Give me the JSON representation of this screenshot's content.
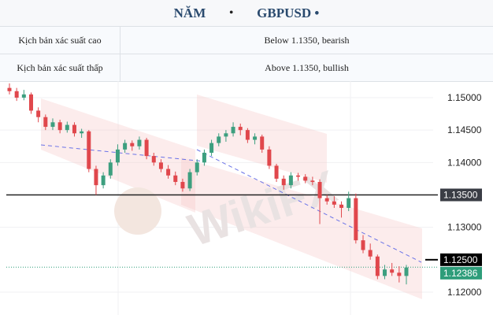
{
  "header": {
    "period": "NĂM",
    "separator": "•",
    "symbol": "GBPUSD •"
  },
  "scenarios": [
    {
      "label": "Kịch bản xác suất cao",
      "value": "Below 1.1350, bearish"
    },
    {
      "label": "Kịch bản xác suất thấp",
      "value": "Above 1.1350, bullish"
    }
  ],
  "chart_data": {
    "type": "candlestick",
    "ylim": [
      1.1175,
      1.1525
    ],
    "yticks": [
      "1.15000",
      "1.14500",
      "1.14000",
      "1.13000",
      "1.12000"
    ],
    "ytick_values": [
      1.15,
      1.145,
      1.14,
      1.13,
      1.12
    ],
    "levels": [
      {
        "value": 1.135,
        "label": "1.13500",
        "color": "#3a3d45"
      },
      {
        "value": 1.125,
        "label": "1.12500",
        "color": "#000000"
      },
      {
        "value": 1.12386,
        "label": "1.12386",
        "color": "#2e9d7a",
        "dotted": true
      }
    ],
    "colors": {
      "up": "#3d9f7f",
      "down": "#e0474c",
      "channel": "#f7c9c9",
      "trend": "#6a73e8"
    },
    "watermark": "WikiFX",
    "candles": [
      [
        1.1515,
        1.1522,
        1.1505,
        1.151
      ],
      [
        1.151,
        1.1515,
        1.1495,
        1.15
      ],
      [
        1.15,
        1.1512,
        1.1496,
        1.1505
      ],
      [
        1.1505,
        1.1508,
        1.1475,
        1.148
      ],
      [
        1.148,
        1.1485,
        1.1462,
        1.147
      ],
      [
        1.147,
        1.1474,
        1.145,
        1.1455
      ],
      [
        1.1455,
        1.1468,
        1.145,
        1.1462
      ],
      [
        1.1462,
        1.1466,
        1.1445,
        1.145
      ],
      [
        1.145,
        1.1463,
        1.1446,
        1.1458
      ],
      [
        1.1458,
        1.1462,
        1.144,
        1.1445
      ],
      [
        1.1445,
        1.1452,
        1.1438,
        1.1448
      ],
      [
        1.1448,
        1.145,
        1.1385,
        1.139
      ],
      [
        1.139,
        1.1395,
        1.135,
        1.1365
      ],
      [
        1.1365,
        1.1385,
        1.136,
        1.138
      ],
      [
        1.138,
        1.1405,
        1.1375,
        1.14
      ],
      [
        1.14,
        1.1428,
        1.1395,
        1.142
      ],
      [
        1.142,
        1.1435,
        1.1415,
        1.143
      ],
      [
        1.143,
        1.1434,
        1.1418,
        1.1425
      ],
      [
        1.1425,
        1.144,
        1.142,
        1.1435
      ],
      [
        1.1435,
        1.1438,
        1.1405,
        1.141
      ],
      [
        1.141,
        1.1415,
        1.1395,
        1.14
      ],
      [
        1.14,
        1.1405,
        1.1385,
        1.139
      ],
      [
        1.139,
        1.1396,
        1.1375,
        1.138
      ],
      [
        1.138,
        1.1386,
        1.1365,
        1.137
      ],
      [
        1.137,
        1.1375,
        1.1355,
        1.136
      ],
      [
        1.136,
        1.139,
        1.1356,
        1.1385
      ],
      [
        1.1385,
        1.1405,
        1.138,
        1.14
      ],
      [
        1.14,
        1.142,
        1.1395,
        1.1415
      ],
      [
        1.1415,
        1.1435,
        1.141,
        1.143
      ],
      [
        1.143,
        1.1445,
        1.1425,
        1.144
      ],
      [
        1.144,
        1.145,
        1.1432,
        1.1445
      ],
      [
        1.1445,
        1.1462,
        1.144,
        1.1455
      ],
      [
        1.1455,
        1.146,
        1.1442,
        1.145
      ],
      [
        1.145,
        1.1453,
        1.143,
        1.1435
      ],
      [
        1.1435,
        1.1445,
        1.1428,
        1.144
      ],
      [
        1.144,
        1.1443,
        1.1415,
        1.142
      ],
      [
        1.142,
        1.1425,
        1.139,
        1.1395
      ],
      [
        1.1395,
        1.1398,
        1.137,
        1.1375
      ],
      [
        1.1375,
        1.138,
        1.1358,
        1.1365
      ],
      [
        1.1365,
        1.1385,
        1.136,
        1.138
      ],
      [
        1.138,
        1.1384,
        1.1372,
        1.1378
      ],
      [
        1.1378,
        1.1382,
        1.1368,
        1.1372
      ],
      [
        1.1372,
        1.1378,
        1.1365,
        1.137
      ],
      [
        1.137,
        1.1374,
        1.1305,
        1.1345
      ],
      [
        1.1345,
        1.135,
        1.1335,
        1.134
      ],
      [
        1.134,
        1.1348,
        1.133,
        1.1335
      ],
      [
        1.1335,
        1.134,
        1.1315,
        1.133
      ],
      [
        1.133,
        1.1355,
        1.1325,
        1.1345
      ],
      [
        1.1345,
        1.1352,
        1.1275,
        1.128
      ],
      [
        1.128,
        1.1288,
        1.126,
        1.1265
      ],
      [
        1.1265,
        1.1275,
        1.125,
        1.1255
      ],
      [
        1.1255,
        1.1258,
        1.122,
        1.1225
      ],
      [
        1.1225,
        1.1242,
        1.122,
        1.1235
      ],
      [
        1.1235,
        1.1245,
        1.1225,
        1.123
      ],
      [
        1.123,
        1.124,
        1.1215,
        1.1225
      ],
      [
        1.1225,
        1.1242,
        1.1212,
        1.1238
      ]
    ]
  }
}
